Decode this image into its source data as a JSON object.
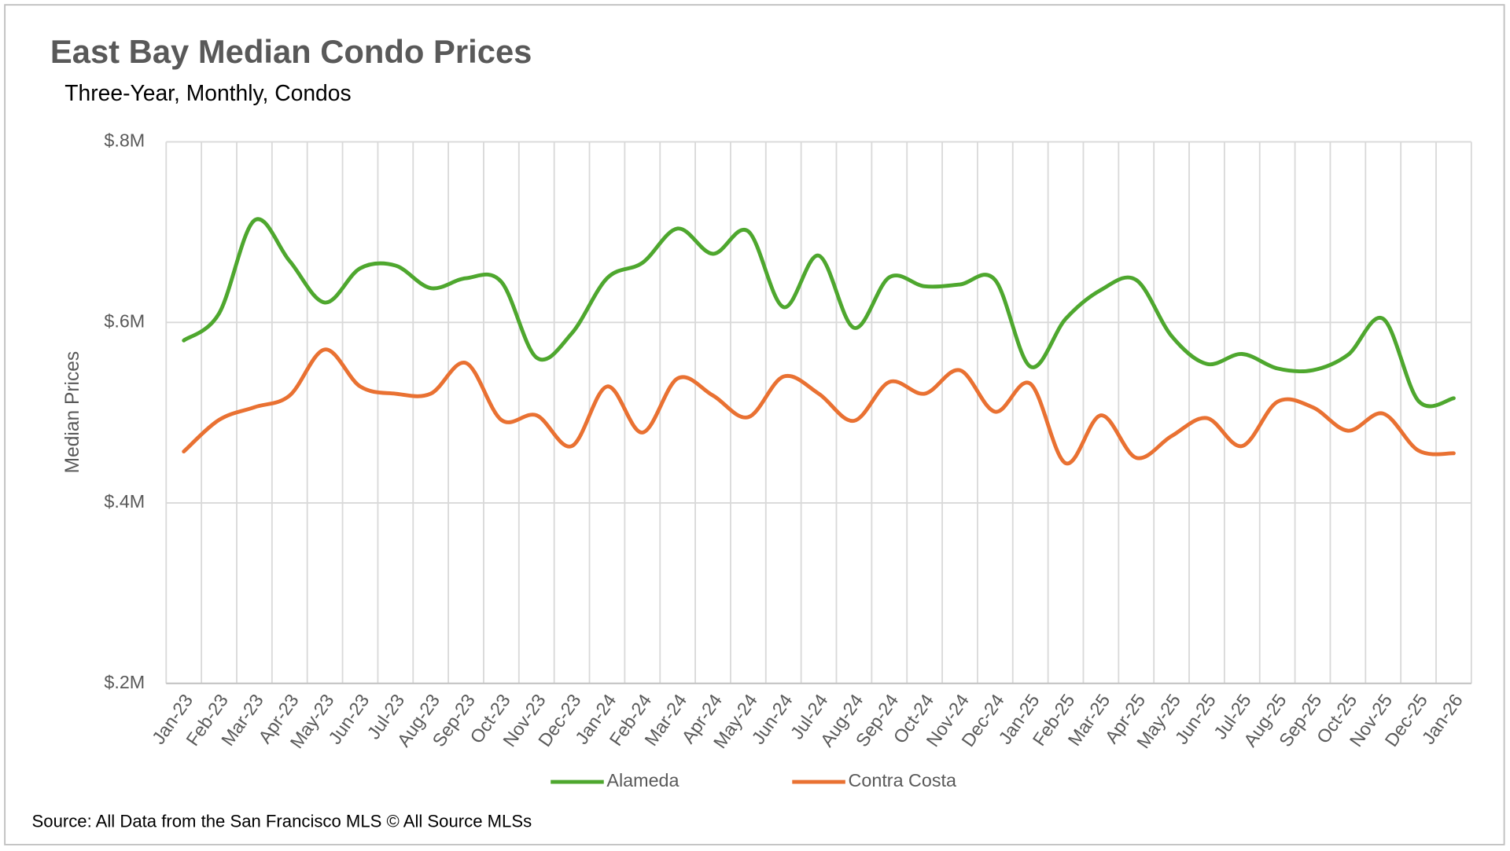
{
  "chart_data": {
    "type": "line",
    "title": "East Bay Median Condo Prices",
    "subtitle": "Three-Year, Monthly, Condos",
    "y_label": "Median Prices",
    "source": "Source: All Data from the San Francisco MLS © All Source MLSs",
    "categories": [
      "Jan-23",
      "Feb-23",
      "Mar-23",
      "Apr-23",
      "May-23",
      "Jun-23",
      "Jul-23",
      "Aug-23",
      "Sep-23",
      "Oct-23",
      "Nov-23",
      "Dec-23",
      "Jan-24",
      "Feb-24",
      "Mar-24",
      "Apr-24",
      "May-24",
      "Jun-24",
      "Jul-24",
      "Aug-24",
      "Sep-24",
      "Oct-24",
      "Nov-24",
      "Dec-24",
      "Jan-25",
      "Feb-25",
      "Mar-25",
      "Apr-25",
      "May-25",
      "Jun-25",
      "Jul-25",
      "Aug-25",
      "Sep-25",
      "Oct-25",
      "Nov-25",
      "Dec-25",
      "Jan-26"
    ],
    "series": [
      {
        "name": "Alameda",
        "color": "#4ea72e",
        "values": [
          0.58,
          0.61,
          0.713,
          0.668,
          0.622,
          0.66,
          0.663,
          0.638,
          0.649,
          0.645,
          0.561,
          0.588,
          0.649,
          0.666,
          0.704,
          0.676,
          0.701,
          0.617,
          0.674,
          0.594,
          0.65,
          0.64,
          0.642,
          0.647,
          0.551,
          0.604,
          0.636,
          0.647,
          0.585,
          0.554,
          0.565,
          0.549,
          0.547,
          0.564,
          0.604,
          0.513,
          0.516
        ]
      },
      {
        "name": "Contra Costa",
        "color": "#e97132",
        "values": [
          0.457,
          0.492,
          0.506,
          0.519,
          0.57,
          0.529,
          0.521,
          0.521,
          0.555,
          0.492,
          0.497,
          0.463,
          0.529,
          0.478,
          0.538,
          0.519,
          0.495,
          0.54,
          0.521,
          0.491,
          0.534,
          0.521,
          0.547,
          0.501,
          0.532,
          0.444,
          0.497,
          0.45,
          0.474,
          0.494,
          0.463,
          0.512,
          0.506,
          0.48,
          0.499,
          0.458,
          0.455
        ]
      }
    ],
    "ylim": [
      0.2,
      0.8
    ],
    "yticks": [
      {
        "value": 0.2,
        "label": "$.2M"
      },
      {
        "value": 0.4,
        "label": "$.4M"
      },
      {
        "value": 0.6,
        "label": "$.6M"
      },
      {
        "value": 0.8,
        "label": "$.8M"
      }
    ],
    "grid": true,
    "legend": "bottom"
  }
}
